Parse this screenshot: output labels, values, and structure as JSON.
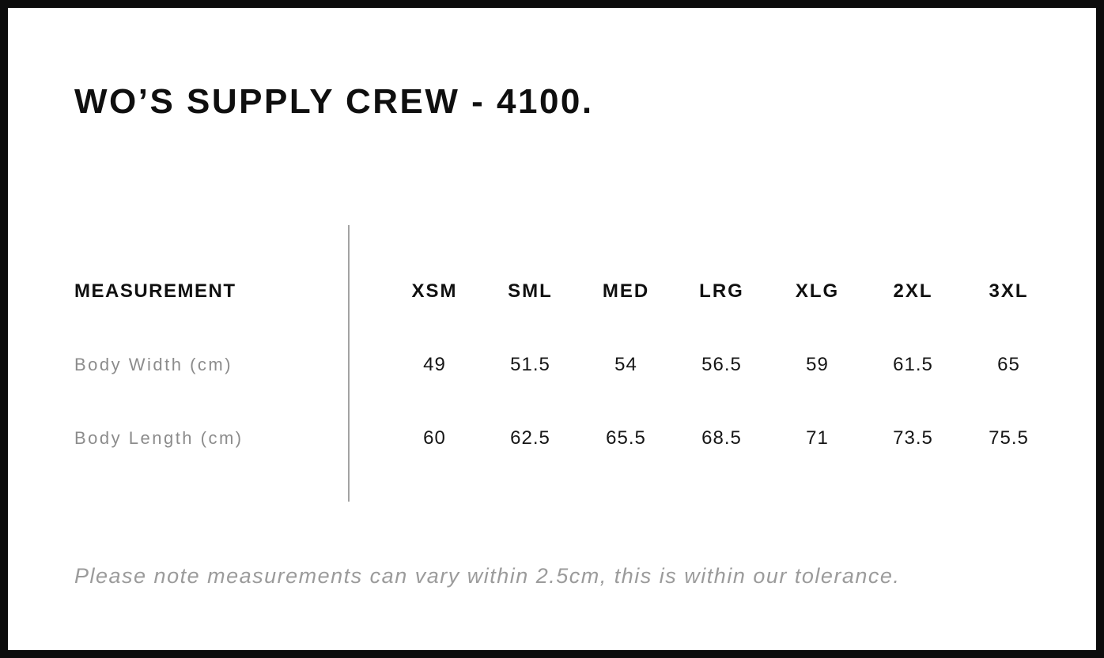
{
  "title": "WO’S SUPPLY CREW - 4100.",
  "table": {
    "header_label": "MEASUREMENT",
    "sizes": [
      "XSM",
      "SML",
      "MED",
      "LRG",
      "XLG",
      "2XL",
      "3XL"
    ],
    "rows": [
      {
        "label": "Body Width (cm)",
        "values": [
          "49",
          "51.5",
          "54",
          "56.5",
          "59",
          "61.5",
          "65"
        ]
      },
      {
        "label": "Body Length (cm)",
        "values": [
          "60",
          "62.5",
          "65.5",
          "68.5",
          "71",
          "73.5",
          "75.5"
        ]
      }
    ]
  },
  "note": "Please note measurements can vary within 2.5cm, this is within our tolerance.",
  "colors": {
    "frame_border": "#0c0c0c",
    "heading_text": "#0f0f0f",
    "value_text": "#161616",
    "muted_label_text": "#8c8c8c",
    "note_text": "#9b9b9b",
    "divider": "#a3a3a3",
    "background": "#ffffff"
  },
  "chart_data": {
    "type": "table",
    "title": "WO’S SUPPLY CREW - 4100.",
    "columns": [
      "MEASUREMENT",
      "XSM",
      "SML",
      "MED",
      "LRG",
      "XLG",
      "2XL",
      "3XL"
    ],
    "rows": [
      [
        "Body Width (cm)",
        49,
        51.5,
        54,
        56.5,
        59,
        61.5,
        65
      ],
      [
        "Body Length (cm)",
        60,
        62.5,
        65.5,
        68.5,
        71,
        73.5,
        75.5
      ]
    ],
    "units": "cm",
    "note": "Please note measurements can vary within 2.5cm, this is within our tolerance."
  }
}
